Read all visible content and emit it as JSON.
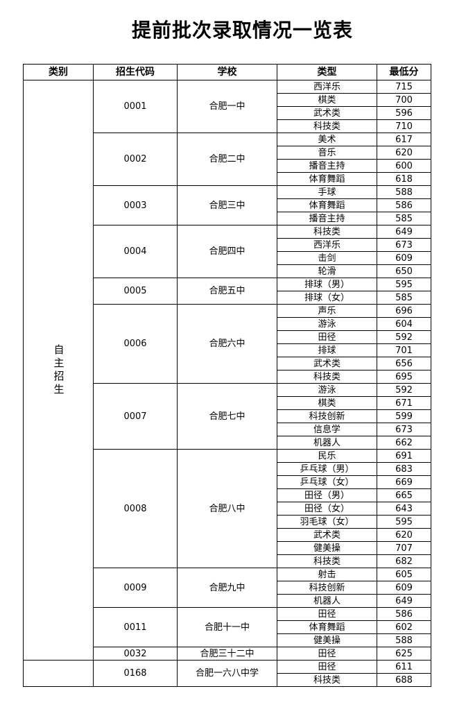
{
  "title": "提前批次录取情况一览表",
  "table": {
    "header": [
      "类别",
      "招生代码",
      "学校",
      "类型",
      "最低分"
    ],
    "sections": [
      {
        "category": "自主招生",
        "schools": [
          {
            "code": "0001",
            "name": "合肥一中",
            "items": [
              {
                "type": "西洋乐",
                "score": 715
              },
              {
                "type": "棋类",
                "score": 700
              },
              {
                "type": "武术类",
                "score": 596
              },
              {
                "type": "科技类",
                "score": 710
              }
            ]
          },
          {
            "code": "0002",
            "name": "合肥二中",
            "items": [
              {
                "type": "美术",
                "score": 617
              },
              {
                "type": "音乐",
                "score": 620
              },
              {
                "type": "播音主持",
                "score": 600
              },
              {
                "type": "体育舞蹈",
                "score": 618
              }
            ]
          },
          {
            "code": "0003",
            "name": "合肥三中",
            "items": [
              {
                "type": "手球",
                "score": 588
              },
              {
                "type": "体育舞蹈",
                "score": 586
              },
              {
                "type": "播音主持",
                "score": 585
              }
            ]
          },
          {
            "code": "0004",
            "name": "合肥四中",
            "items": [
              {
                "type": "科技类",
                "score": 649
              },
              {
                "type": "西洋乐",
                "score": 673
              },
              {
                "type": "击剑",
                "score": 609
              },
              {
                "type": "轮滑",
                "score": 650
              }
            ]
          },
          {
            "code": "0005",
            "name": "合肥五中",
            "items": [
              {
                "type": "排球（男）",
                "score": 595
              },
              {
                "type": "排球（女）",
                "score": 585
              }
            ]
          },
          {
            "code": "0006",
            "name": "合肥六中",
            "items": [
              {
                "type": "声乐",
                "score": 696
              },
              {
                "type": "游泳",
                "score": 604
              },
              {
                "type": "田径",
                "score": 592
              },
              {
                "type": "排球",
                "score": 701
              },
              {
                "type": "武术类",
                "score": 656
              },
              {
                "type": "科技类",
                "score": 695
              }
            ]
          },
          {
            "code": "0007",
            "name": "合肥七中",
            "items": [
              {
                "type": "游泳",
                "score": 592
              },
              {
                "type": "棋类",
                "score": 671
              },
              {
                "type": "科技创新",
                "score": 599
              },
              {
                "type": "信息学",
                "score": 673
              },
              {
                "type": "机器人",
                "score": 662
              }
            ]
          },
          {
            "code": "0008",
            "name": "合肥八中",
            "items": [
              {
                "type": "民乐",
                "score": 691
              },
              {
                "type": "乒乓球（男）",
                "score": 683
              },
              {
                "type": "乒乓球（女）",
                "score": 669
              },
              {
                "type": "田径（男）",
                "score": 665
              },
              {
                "type": "田径（女）",
                "score": 643
              },
              {
                "type": "羽毛球（女）",
                "score": 595
              },
              {
                "type": "武术类",
                "score": 620
              },
              {
                "type": "健美操",
                "score": 707
              },
              {
                "type": "科技类",
                "score": 682
              }
            ]
          },
          {
            "code": "0009",
            "name": "合肥九中",
            "items": [
              {
                "type": "射击",
                "score": 605
              },
              {
                "type": "科技创新",
                "score": 609
              },
              {
                "type": "机器人",
                "score": 649
              }
            ]
          },
          {
            "code": "0011",
            "name": "合肥十一中",
            "items": [
              {
                "type": "田径",
                "score": 586
              },
              {
                "type": "体育舞蹈",
                "score": 602
              },
              {
                "type": "健美操",
                "score": 588
              }
            ]
          },
          {
            "code": "0032",
            "name": "合肥三十二中",
            "items": [
              {
                "type": "田径",
                "score": 625
              }
            ]
          }
        ]
      },
      {
        "schools": [
          {
            "code": "0168",
            "name": "合肥一六八中学",
            "items": [
              {
                "type": "田径",
                "score": 611
              },
              {
                "type": "科技类",
                "score": 688
              }
            ]
          }
        ]
      }
    ]
  }
}
